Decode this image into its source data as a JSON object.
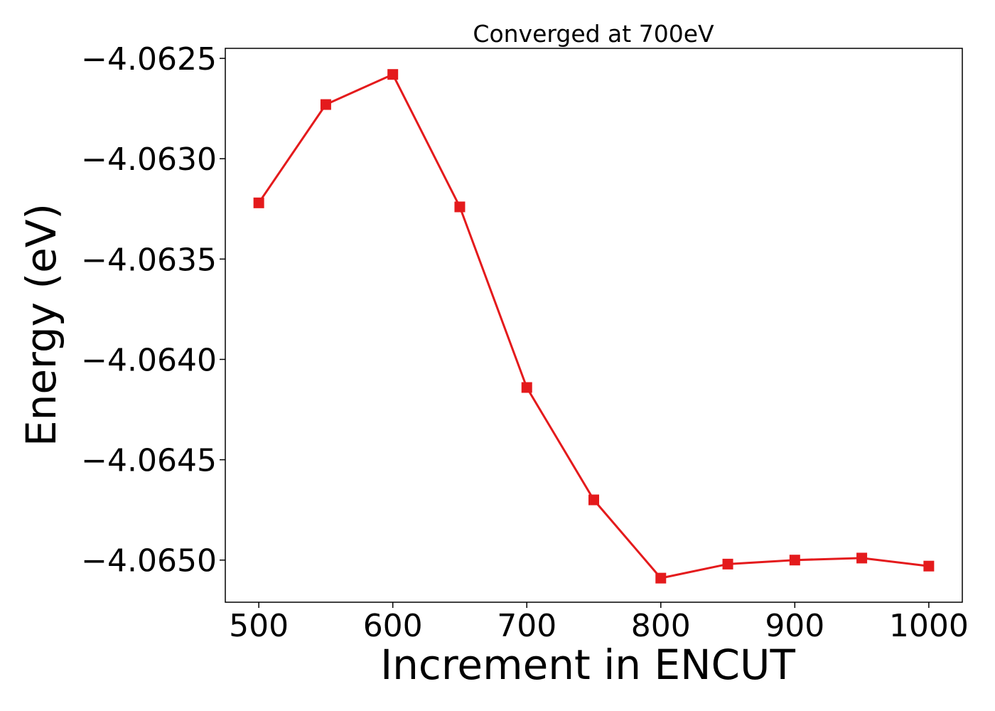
{
  "chart_data": {
    "type": "line",
    "title": "Converged at 700eV",
    "xlabel": "Increment in ENCUT",
    "ylabel": "Energy (eV)",
    "x": [
      500,
      550,
      600,
      650,
      700,
      750,
      800,
      850,
      900,
      950,
      1000
    ],
    "series": [
      {
        "values": [
          -4.06322,
          -4.06273,
          -4.06258,
          -4.06324,
          -4.06414,
          -4.0647,
          -4.06509,
          -4.06502,
          -4.065,
          -4.06499,
          -4.06503
        ],
        "color": "#e41a1c",
        "marker": "square"
      }
    ],
    "xlim": [
      475,
      1025
    ],
    "ylim": [
      -4.06521,
      -4.06245
    ],
    "xticks": [
      500,
      600,
      700,
      800,
      900,
      1000
    ],
    "xtick_labels": [
      "500",
      "600",
      "700",
      "800",
      "900",
      "1000"
    ],
    "yticks": [
      -4.0625,
      -4.063,
      -4.0635,
      -4.064,
      -4.0645,
      -4.065
    ],
    "ytick_labels": [
      "−4.0625",
      "−4.0630",
      "−4.0635",
      "−4.0640",
      "−4.0645",
      "−4.0650"
    ],
    "grid": false,
    "legend": "none"
  }
}
